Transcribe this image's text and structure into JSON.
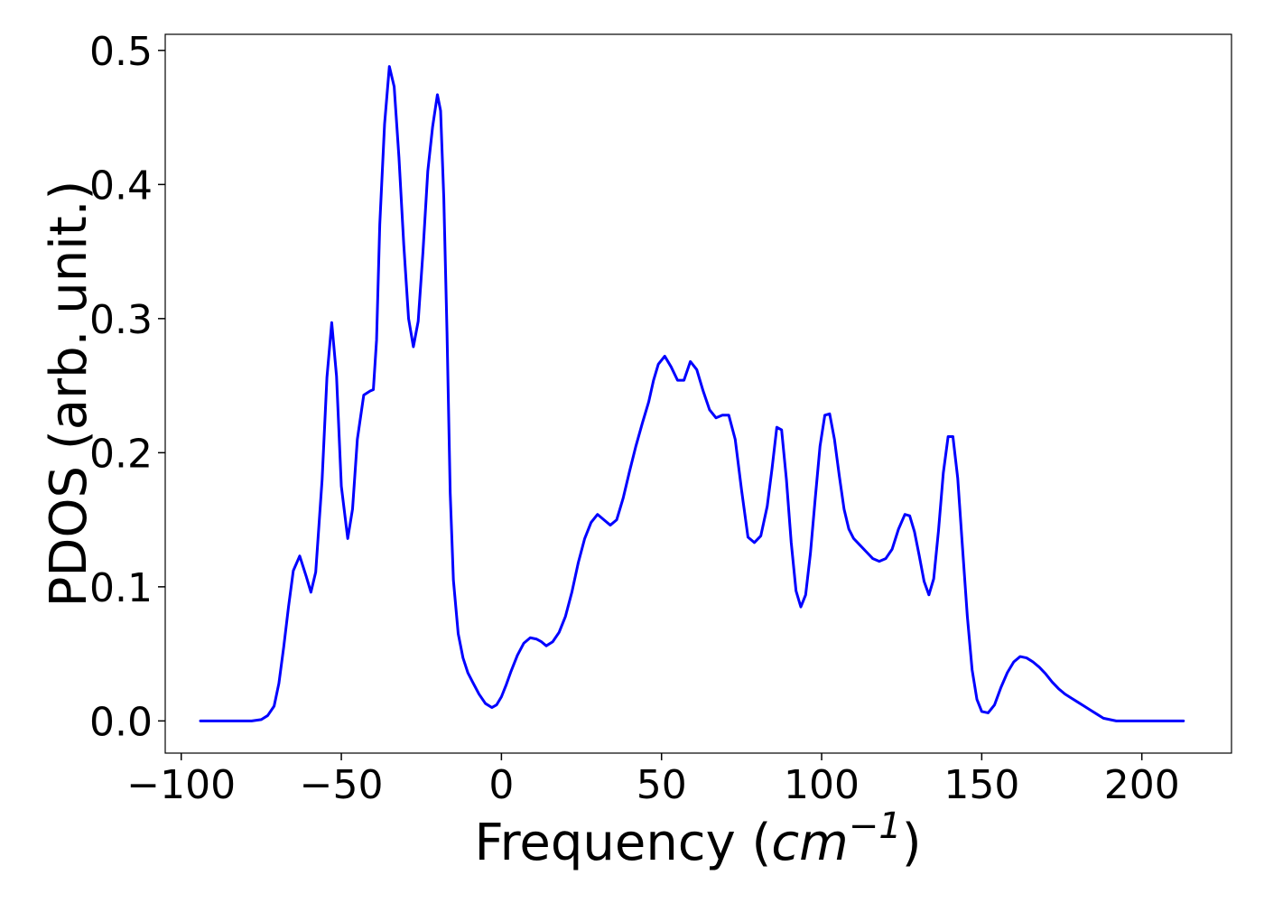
{
  "chart_data": {
    "type": "line",
    "title": "",
    "xlabel": "Frequency (cm^-1)",
    "xlabel_parts": {
      "prefix": "Frequency (",
      "unit": "cm",
      "exponent": "−1",
      "suffix": ")"
    },
    "ylabel": "PDOS (arb. unit.)",
    "xlim": [
      -105,
      228
    ],
    "ylim": [
      -0.024,
      0.512
    ],
    "xticks": [
      -100,
      -50,
      0,
      50,
      100,
      150,
      200
    ],
    "xtick_labels": [
      "−100",
      "−50",
      "0",
      "50",
      "100",
      "150",
      "200"
    ],
    "yticks": [
      0.0,
      0.1,
      0.2,
      0.3,
      0.4,
      0.5
    ],
    "ytick_labels": [
      "0.0",
      "0.1",
      "0.2",
      "0.3",
      "0.4",
      "0.5"
    ],
    "grid": false,
    "legend": "none",
    "line_color": "#0000ff",
    "series": [
      {
        "x": [
          -94,
          -88,
          -82,
          -78,
          -75,
          -73,
          -71,
          -69.5,
          -68,
          -66.5,
          -65,
          -63,
          -61,
          -59.5,
          -58,
          -56,
          -54.5,
          -53,
          -51.5,
          -50,
          -48,
          -46.5,
          -45,
          -43,
          -41,
          -40,
          -39,
          -38,
          -36.5,
          -35,
          -33.5,
          -32,
          -30.5,
          -29,
          -27.5,
          -26,
          -24.5,
          -23,
          -21.5,
          -20,
          -19,
          -18,
          -17,
          -16,
          -15,
          -13.5,
          -12,
          -10.5,
          -9,
          -7,
          -5,
          -3,
          -1.5,
          0,
          1.5,
          3,
          5,
          7,
          9,
          11,
          12.5,
          14,
          16,
          18,
          20,
          22,
          24,
          26,
          28,
          30,
          32,
          34,
          36,
          38,
          40,
          42,
          44,
          46,
          47.5,
          49,
          51,
          53,
          55,
          57,
          59,
          61,
          63,
          65,
          67,
          69,
          71,
          73,
          75,
          77,
          79,
          81,
          83,
          84.5,
          86,
          87.5,
          89,
          90.5,
          92,
          93.5,
          95,
          96.5,
          98,
          99.5,
          101,
          102.5,
          104,
          105.5,
          107,
          108.5,
          110,
          112,
          114,
          116,
          118,
          120,
          122,
          124,
          126,
          127.5,
          129,
          130.5,
          132,
          133.5,
          135,
          136.5,
          138,
          139.5,
          141,
          142.5,
          144,
          145.5,
          147,
          148.5,
          150,
          152,
          154,
          156,
          158,
          160,
          162,
          164,
          166,
          168,
          170,
          172,
          174,
          176,
          178,
          180,
          182,
          184,
          186,
          188,
          190,
          192,
          195,
          200,
          205,
          210,
          213
        ],
        "y": [
          0.0,
          0.0,
          0.0,
          0.0,
          0.001,
          0.004,
          0.011,
          0.028,
          0.055,
          0.085,
          0.112,
          0.123,
          0.108,
          0.096,
          0.111,
          0.18,
          0.256,
          0.297,
          0.257,
          0.175,
          0.136,
          0.158,
          0.21,
          0.243,
          0.246,
          0.247,
          0.284,
          0.37,
          0.445,
          0.488,
          0.473,
          0.42,
          0.355,
          0.3,
          0.279,
          0.298,
          0.35,
          0.41,
          0.443,
          0.467,
          0.455,
          0.39,
          0.29,
          0.17,
          0.105,
          0.065,
          0.047,
          0.036,
          0.029,
          0.02,
          0.013,
          0.01,
          0.012,
          0.018,
          0.027,
          0.037,
          0.049,
          0.058,
          0.062,
          0.061,
          0.059,
          0.056,
          0.059,
          0.066,
          0.078,
          0.096,
          0.118,
          0.136,
          0.148,
          0.154,
          0.15,
          0.146,
          0.15,
          0.166,
          0.186,
          0.205,
          0.222,
          0.238,
          0.254,
          0.266,
          0.272,
          0.264,
          0.254,
          0.254,
          0.268,
          0.262,
          0.246,
          0.232,
          0.226,
          0.228,
          0.228,
          0.21,
          0.172,
          0.137,
          0.133,
          0.138,
          0.16,
          0.188,
          0.219,
          0.217,
          0.18,
          0.133,
          0.097,
          0.085,
          0.094,
          0.125,
          0.166,
          0.205,
          0.228,
          0.229,
          0.21,
          0.183,
          0.158,
          0.143,
          0.136,
          0.131,
          0.126,
          0.121,
          0.119,
          0.121,
          0.128,
          0.143,
          0.154,
          0.153,
          0.141,
          0.123,
          0.104,
          0.094,
          0.106,
          0.142,
          0.185,
          0.212,
          0.212,
          0.181,
          0.129,
          0.078,
          0.038,
          0.016,
          0.007,
          0.006,
          0.012,
          0.025,
          0.036,
          0.044,
          0.048,
          0.047,
          0.044,
          0.04,
          0.035,
          0.029,
          0.024,
          0.02,
          0.017,
          0.014,
          0.011,
          0.008,
          0.005,
          0.002,
          0.001,
          0.0,
          0.0,
          0.0,
          0.0,
          0.0,
          0.0
        ]
      }
    ]
  }
}
